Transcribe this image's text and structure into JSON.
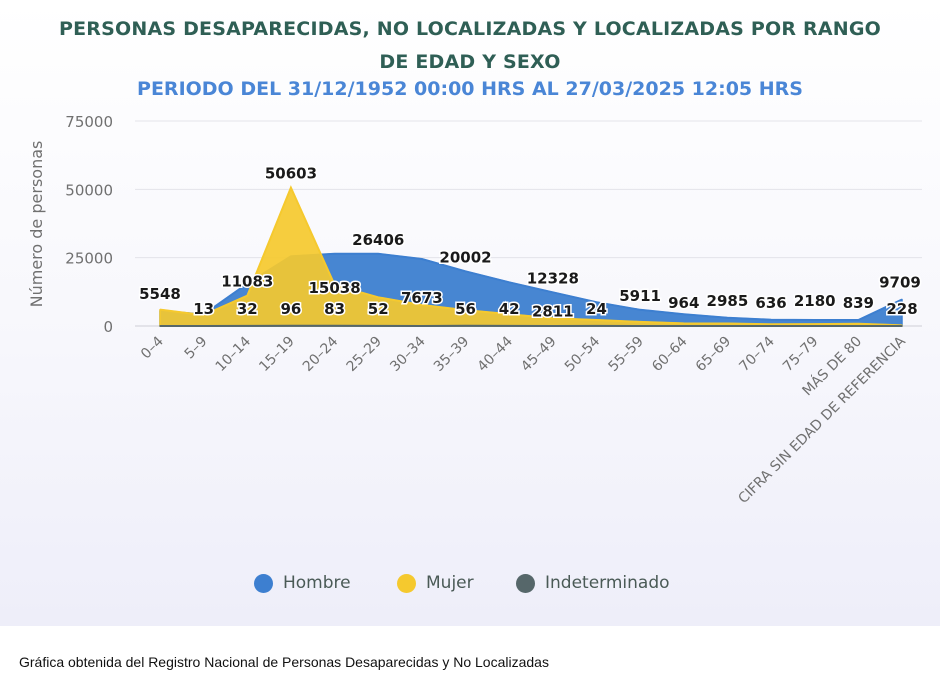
{
  "title_line1": "PERSONAS DESAPARECIDAS, NO LOCALIZADAS Y LOCALIZADAS POR RANGO",
  "title_line2": "DE EDAD Y SEXO",
  "subtitle": "PERIODO DEL 31/12/1952 00:00 HRS AL 27/03/2025 12:05 HRS",
  "footer": "Gráfica obtenida del Registro Nacional de Personas Desaparecidas y No Localizadas",
  "colors": {
    "hombre": "#3d7fd0",
    "mujer": "#f5c92e",
    "indeterminado": "#56676a",
    "title": "#2f5f55",
    "subtitle": "#4a86d6"
  },
  "chart_data": {
    "type": "area",
    "ylabel": "Número de personas",
    "xlabel": "",
    "ylim": [
      0,
      75000
    ],
    "yticks": [
      0,
      25000,
      50000,
      75000
    ],
    "grid": true,
    "legend_position": "bottom",
    "categories": [
      "0–4",
      "5–9",
      "10–14",
      "15–19",
      "20–24",
      "25–29",
      "30–34",
      "35–39",
      "40–44",
      "45–49",
      "50–54",
      "55–59",
      "60–64",
      "65–69",
      "70–74",
      "75–79",
      "MÁS DE 80",
      "CIFRA SIN EDAD DE REFERENCIA"
    ],
    "series": [
      {
        "name": "Hombre",
        "color": "#3d7fd0",
        "values": [
          5548,
          4200,
          15500,
          25508,
          26400,
          26406,
          24500,
          20002,
          16000,
          12328,
          8700,
          5911,
          4300,
          2985,
          2300,
          2180,
          2200,
          9709
        ],
        "labels": [
          "5548",
          "",
          "",
          "",
          "",
          "26406",
          "",
          "20002",
          "",
          "12328",
          "",
          "5911",
          "",
          "2985",
          "",
          "2180",
          "",
          "9709"
        ]
      },
      {
        "name": "Mujer",
        "color": "#f5c92e",
        "values": [
          6000,
          4000,
          11083,
          50603,
          15038,
          10500,
          7673,
          5800,
          4300,
          2811,
          2200,
          1500,
          964,
          900,
          636,
          700,
          839,
          228
        ],
        "labels": [
          "",
          "",
          "11083",
          "50603",
          "15038",
          "",
          "7673",
          "",
          "",
          "2811",
          "",
          "",
          "964",
          "",
          "636",
          "",
          "839",
          "228"
        ]
      },
      {
        "name": "Indeterminado",
        "color": "#56676a",
        "values": [
          0,
          13,
          32,
          96,
          83,
          52,
          0,
          56,
          42,
          0,
          24,
          0,
          0,
          0,
          0,
          0,
          0,
          0
        ],
        "labels": [
          "",
          "13",
          "32",
          "96",
          "83",
          "52",
          "",
          "56",
          "42",
          "",
          "24",
          "",
          "",
          "",
          "",
          "",
          "",
          ""
        ]
      }
    ]
  }
}
